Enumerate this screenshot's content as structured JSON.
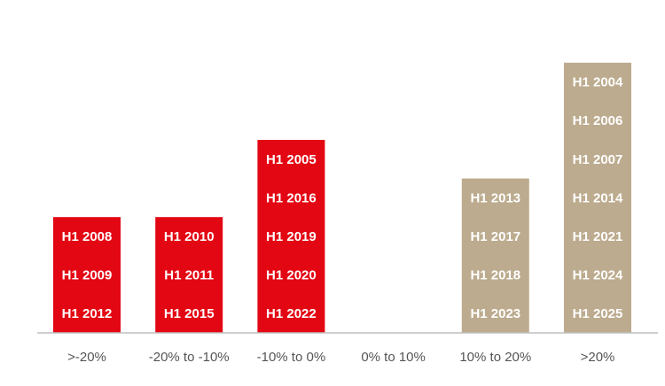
{
  "chart_data": {
    "type": "bar",
    "categories": [
      ">-20%",
      "-20% to -10%",
      "-10% to 0%",
      "0% to 10%",
      "10% to 20%",
      ">20%"
    ],
    "values": [
      3,
      3,
      5,
      0,
      4,
      7
    ],
    "bar_items": [
      [
        "H1 2012",
        "H1 2009",
        "H1 2008"
      ],
      [
        "H1 2015",
        "H1 2011",
        "H1 2010"
      ],
      [
        "H1 2022",
        "H1 2020",
        "H1 2019",
        "H1 2016",
        "H1 2005"
      ],
      [],
      [
        "H1 2023",
        "H1 2018",
        "H1 2017",
        "H1 2013"
      ],
      [
        "H1 2025",
        "H1 2024",
        "H1 2021",
        "H1 2014",
        "H1 2007",
        "H1 2006",
        "H1 2004"
      ]
    ],
    "colors": [
      "#e30613",
      "#e30613",
      "#e30613",
      "#e30613",
      "#bcab8e",
      "#bcab8e"
    ],
    "xlabel": "",
    "ylabel": "",
    "ylim": [
      0,
      7
    ],
    "grid": false,
    "legend": "none"
  }
}
